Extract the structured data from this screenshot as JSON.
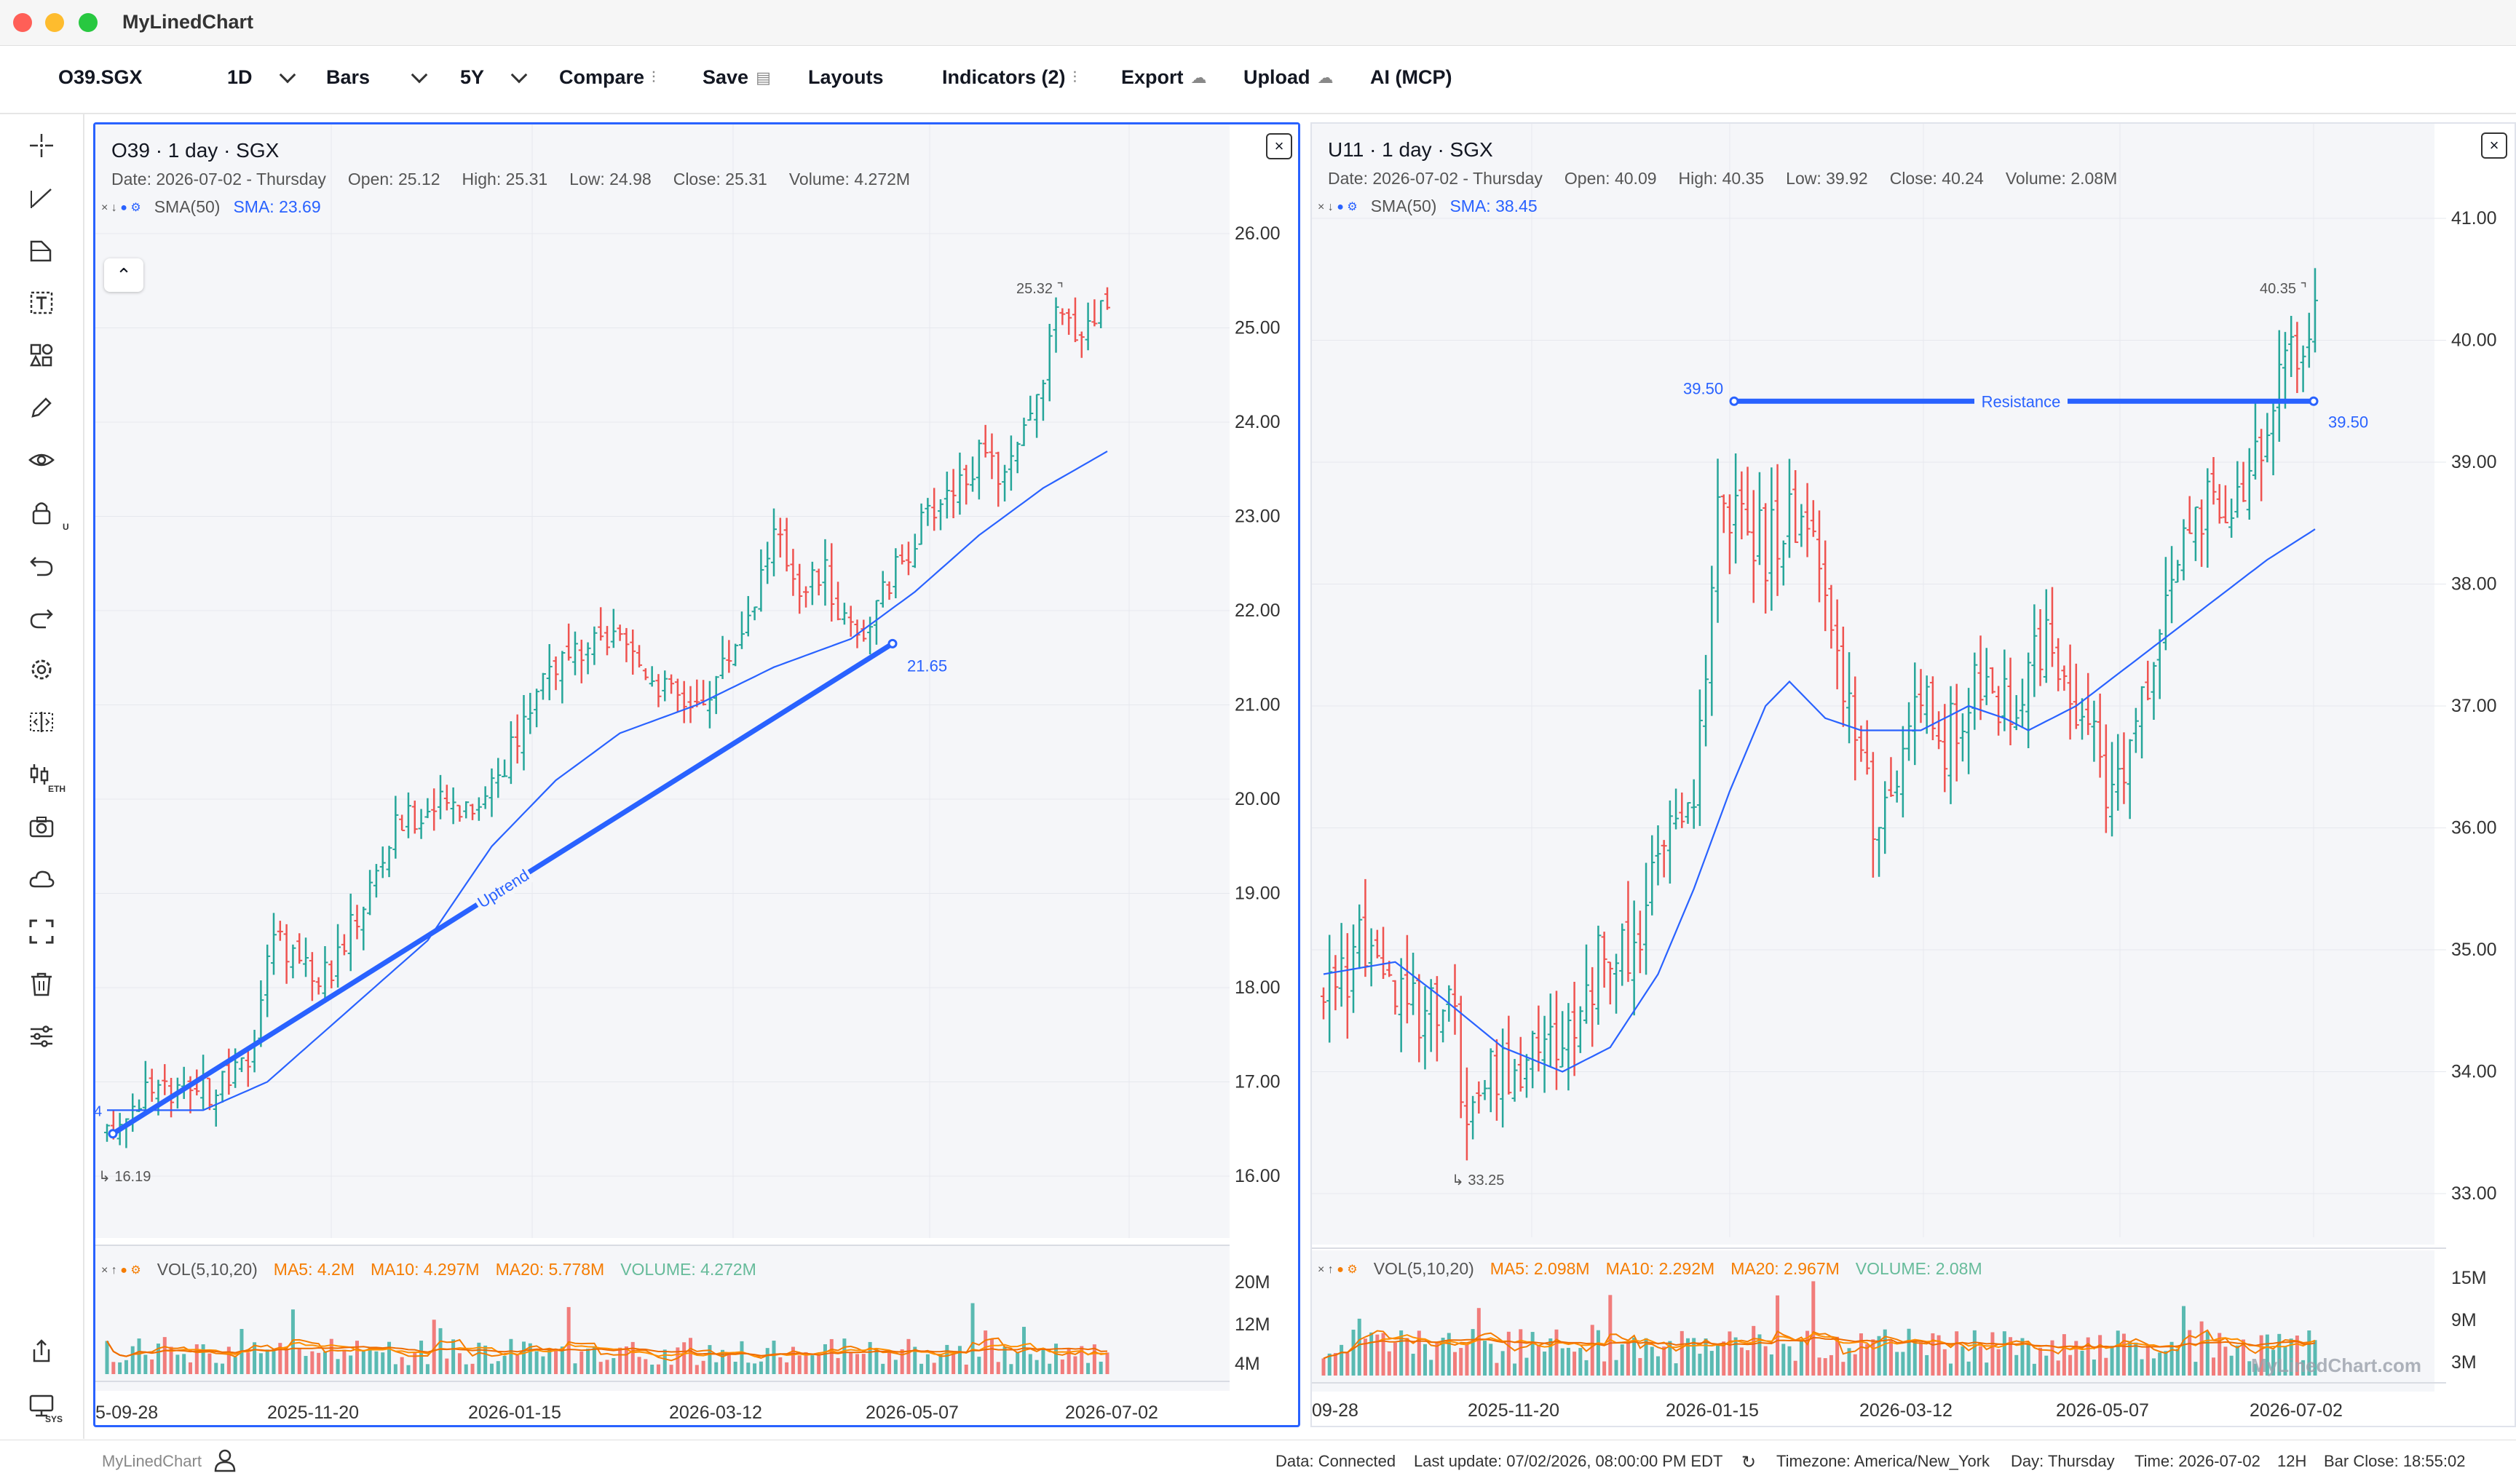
{
  "app": {
    "title": "MyLinedChart"
  },
  "toolbar": {
    "symbol": "O39.SGX",
    "interval": "1D",
    "chart_type": "Bars",
    "range": "5Y",
    "compare": "Compare",
    "save": "Save",
    "layouts": "Layouts",
    "indicators": "Indicators (2)",
    "export": "Export",
    "upload": "Upload",
    "ai": "AI (MCP)"
  },
  "sidebar": {
    "icons": [
      "crosshair-icon",
      "trendline-icon",
      "fib-icon",
      "text-icon",
      "shapes-icon",
      "pencil-icon",
      "eye-icon",
      "lock-icon",
      "undo-icon",
      "redo-icon",
      "settings-icon",
      "compare-panes-icon",
      "extended-hours-icon",
      "camera-icon",
      "cloud-icon",
      "fullscreen-icon",
      "trash-icon",
      "sliders-icon"
    ],
    "lock_sub": "U",
    "eth_sub": "ETH",
    "sys_sub": "SYS"
  },
  "panels": [
    {
      "title": "O39 · 1 day · SGX",
      "info": {
        "date": "Date: 2026-07-02 - Thursday",
        "open": "Open: 25.12",
        "high": "High: 25.31",
        "low": "Low: 24.98",
        "close": "Close: 25.31",
        "volume": "Volume: 4.272M"
      },
      "sma_label": "SMA(50)",
      "sma_value": "SMA: 23.69",
      "vol_legend": {
        "label": "VOL(5,10,20)",
        "ma5": "MA5: 4.2M",
        "ma10": "MA10: 4.297M",
        "ma20": "MA20: 5.778M",
        "volume": "VOLUME: 4.272M"
      },
      "price_ticks": [
        "26.00",
        "25.00",
        "24.00",
        "23.00",
        "22.00",
        "21.00",
        "20.00",
        "19.00",
        "18.00",
        "17.00",
        "16.00"
      ],
      "vol_ticks": [
        "20M",
        "12M",
        "4M"
      ],
      "date_ticks": [
        "5-09-28",
        "2025-11-20",
        "2026-01-15",
        "2026-03-12",
        "2026-05-07",
        "2026-07-02"
      ],
      "annotations": {
        "high": "25.32",
        "low": "16.19",
        "trend_end": "21.65",
        "trend_label": "Uptrend",
        "left_cut": "4"
      },
      "chart_data": {
        "type": "candlestick",
        "price_range": [
          15.6,
          26.4
        ],
        "trend_start": [
          "2025-09-29",
          16.45
        ],
        "trend_end": [
          "2026-05-13",
          21.65
        ],
        "waypoints": [
          [
            0,
            16.4
          ],
          [
            6,
            16.95
          ],
          [
            12,
            16.8
          ],
          [
            18,
            16.95
          ],
          [
            22,
            17.2
          ],
          [
            26,
            18.6
          ],
          [
            30,
            18.3
          ],
          [
            34,
            18.1
          ],
          [
            40,
            18.9
          ],
          [
            45,
            19.7
          ],
          [
            50,
            19.9
          ],
          [
            58,
            20.0
          ],
          [
            64,
            20.6
          ],
          [
            68,
            21.4
          ],
          [
            74,
            21.5
          ],
          [
            78,
            21.7
          ],
          [
            84,
            21.4
          ],
          [
            88,
            21.1
          ],
          [
            92,
            21.0
          ],
          [
            96,
            21.4
          ],
          [
            100,
            22.0
          ],
          [
            104,
            22.8
          ],
          [
            108,
            22.3
          ],
          [
            112,
            22.4
          ],
          [
            114,
            22.0
          ],
          [
            118,
            21.8
          ],
          [
            122,
            22.3
          ],
          [
            126,
            22.8
          ],
          [
            130,
            23.2
          ],
          [
            136,
            23.6
          ],
          [
            140,
            23.4
          ],
          [
            144,
            24.0
          ],
          [
            148,
            25.1
          ],
          [
            152,
            25.0
          ],
          [
            156,
            25.31
          ]
        ],
        "sma_waypoints": [
          [
            0,
            16.7
          ],
          [
            15,
            16.7
          ],
          [
            25,
            17.0
          ],
          [
            35,
            17.6
          ],
          [
            50,
            18.5
          ],
          [
            60,
            19.5
          ],
          [
            70,
            20.2
          ],
          [
            80,
            20.7
          ],
          [
            92,
            21.0
          ],
          [
            104,
            21.4
          ],
          [
            116,
            21.7
          ],
          [
            126,
            22.2
          ],
          [
            136,
            22.8
          ],
          [
            146,
            23.3
          ],
          [
            156,
            23.69
          ]
        ],
        "volume_range": [
          0,
          24
        ]
      }
    },
    {
      "title": "U11 · 1 day · SGX",
      "info": {
        "date": "Date: 2026-07-02 - Thursday",
        "open": "Open: 40.09",
        "high": "High: 40.35",
        "low": "Low: 39.92",
        "close": "Close: 40.24",
        "volume": "Volume: 2.08M"
      },
      "sma_label": "SMA(50)",
      "sma_value": "SMA: 38.45",
      "vol_legend": {
        "label": "VOL(5,10,20)",
        "ma5": "MA5: 2.098M",
        "ma10": "MA10: 2.292M",
        "ma20": "MA20: 2.967M",
        "volume": "VOLUME: 2.08M"
      },
      "price_ticks": [
        "41.00",
        "40.00",
        "39.00",
        "38.00",
        "37.00",
        "36.00",
        "35.00",
        "34.00",
        "33.00"
      ],
      "vol_ticks": [
        "15M",
        "9M",
        "3M"
      ],
      "date_ticks": [
        "09-28",
        "2025-11-20",
        "2026-01-15",
        "2026-03-12",
        "2026-05-07",
        "2026-07-02"
      ],
      "annotations": {
        "high": "40.35",
        "low": "33.25",
        "resistance_left": "39.50",
        "resistance_right": "39.50",
        "resistance_label": "Resistance",
        "watermark": "MyLinedChart.com"
      },
      "chart_data": {
        "type": "candlestick",
        "price_range": [
          32.6,
          41.6
        ],
        "resistance": 39.5,
        "waypoints": [
          [
            0,
            34.6
          ],
          [
            6,
            35.0
          ],
          [
            10,
            34.7
          ],
          [
            14,
            34.5
          ],
          [
            18,
            34.6
          ],
          [
            22,
            34.5
          ],
          [
            24,
            33.4
          ],
          [
            28,
            33.9
          ],
          [
            32,
            34.0
          ],
          [
            36,
            34.3
          ],
          [
            40,
            34.2
          ],
          [
            46,
            34.9
          ],
          [
            50,
            35.0
          ],
          [
            54,
            35.3
          ],
          [
            58,
            36.0
          ],
          [
            62,
            36.4
          ],
          [
            64,
            37.0
          ],
          [
            66,
            38.8
          ],
          [
            70,
            38.5
          ],
          [
            74,
            38.3
          ],
          [
            78,
            38.6
          ],
          [
            82,
            38.4
          ],
          [
            88,
            37.0
          ],
          [
            92,
            36.0
          ],
          [
            96,
            36.5
          ],
          [
            100,
            37.0
          ],
          [
            104,
            36.7
          ],
          [
            110,
            37.2
          ],
          [
            114,
            37.0
          ],
          [
            120,
            37.5
          ],
          [
            124,
            37.4
          ],
          [
            128,
            36.8
          ],
          [
            132,
            36.3
          ],
          [
            136,
            36.8
          ],
          [
            140,
            37.8
          ],
          [
            144,
            38.3
          ],
          [
            148,
            38.6
          ],
          [
            152,
            38.4
          ],
          [
            156,
            39.1
          ],
          [
            160,
            39.7
          ],
          [
            164,
            40.0
          ],
          [
            166,
            40.24
          ]
        ],
        "sma_waypoints": [
          [
            0,
            34.8
          ],
          [
            12,
            34.9
          ],
          [
            20,
            34.6
          ],
          [
            30,
            34.2
          ],
          [
            40,
            34.0
          ],
          [
            48,
            34.2
          ],
          [
            56,
            34.8
          ],
          [
            62,
            35.5
          ],
          [
            68,
            36.3
          ],
          [
            74,
            37.0
          ],
          [
            78,
            37.2
          ],
          [
            84,
            36.9
          ],
          [
            90,
            36.8
          ],
          [
            100,
            36.8
          ],
          [
            108,
            37.0
          ],
          [
            114,
            36.9
          ],
          [
            118,
            36.8
          ],
          [
            126,
            37.0
          ],
          [
            134,
            37.3
          ],
          [
            142,
            37.6
          ],
          [
            150,
            37.9
          ],
          [
            158,
            38.2
          ],
          [
            166,
            38.45
          ]
        ],
        "volume_range": [
          0,
          18
        ]
      }
    }
  ],
  "status": {
    "brand": "MyLinedChart",
    "data": "Data: Connected",
    "last_update": "Last update: 07/02/2026, 08:00:00 PM EDT",
    "timezone": "Timezone: America/New_York",
    "day": "Day: Thursday",
    "time": "Time: 2026-07-02",
    "hours": "12H",
    "bar_close": "Bar Close: 18:55:02"
  },
  "colors": {
    "up": "#26a69a",
    "down": "#ef5350",
    "sma": "#2962ff",
    "drawing": "#2962ff",
    "ma_orange": "#f57c00",
    "volume_green": "#26a69a"
  }
}
